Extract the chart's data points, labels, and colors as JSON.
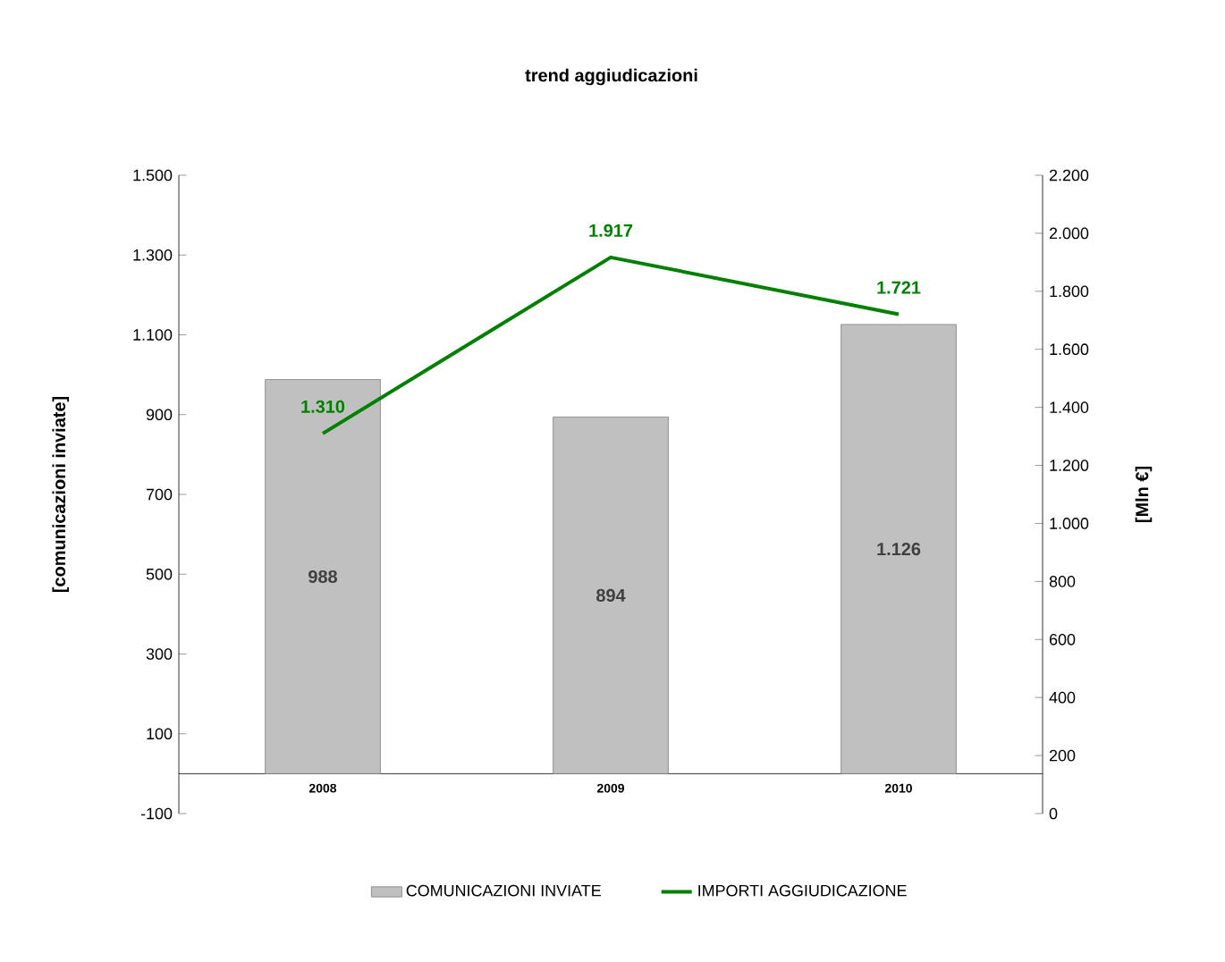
{
  "chart_data": {
    "type": "bar",
    "title": "trend aggiudicazioni",
    "ylabel": "[comunicazioni inviate]",
    "y2label": "[Mln €]",
    "categories": [
      "2008",
      "2009",
      "2010"
    ],
    "series": [
      {
        "name": "COMUNICAZIONI INVIATE",
        "color": "#c0c0c0",
        "values": [
          988,
          894,
          1126
        ],
        "value_labels": [
          "988",
          "894",
          "1.126"
        ]
      },
      {
        "name": "IMPORTI AGGIUDICAZIONE",
        "type": "line",
        "axis": "y2",
        "color": "#008000",
        "values": [
          1310,
          1917,
          1721
        ],
        "value_labels": [
          "1.310",
          "1.917",
          "1.721"
        ]
      }
    ],
    "ylim": [
      -100,
      1500
    ],
    "yticks": [
      -100,
      100,
      300,
      500,
      700,
      900,
      {
        "value": 1100,
        "label": "1.100"
      },
      {
        "value": 1300,
        "label": "1.300"
      },
      {
        "value": 1500,
        "label": "1.500"
      }
    ],
    "y2lim": [
      0,
      2200
    ],
    "y2ticks": [
      0,
      200,
      400,
      600,
      800,
      {
        "value": 1000,
        "label": "1.000"
      },
      {
        "value": 1200,
        "label": "1.200"
      },
      {
        "value": 1400,
        "label": "1.400"
      },
      {
        "value": 1600,
        "label": "1.600"
      },
      {
        "value": 1800,
        "label": "1.800"
      },
      {
        "value": 2000,
        "label": "2.000"
      },
      {
        "value": 2200,
        "label": "2.200"
      }
    ],
    "legend": "bottom"
  }
}
